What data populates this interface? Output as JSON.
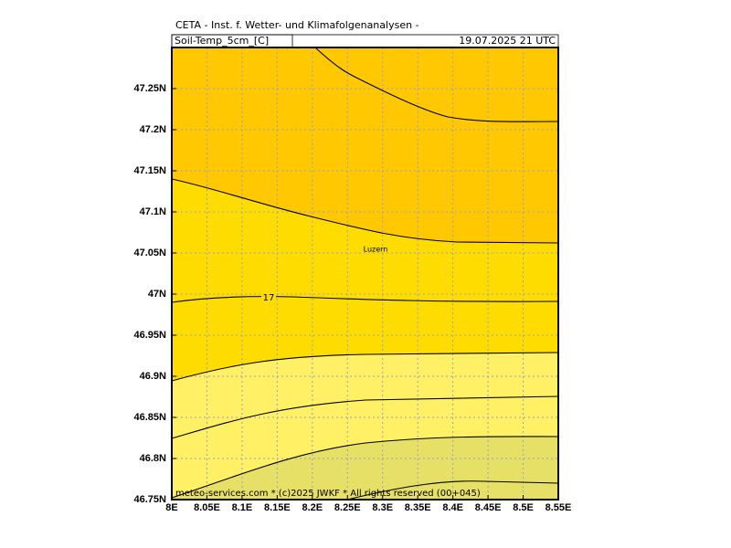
{
  "header": {
    "title": "CETA - Inst. f. Wetter- und Klimafolgenanalysen -",
    "variable": "Soil-Temp_5cm_[C]",
    "valid": "19.07.2025 21 UTC"
  },
  "map": {
    "xlim": [
      8,
      8.55
    ],
    "ylim": [
      46.75,
      47.3
    ],
    "xticks": [
      {
        "value": 8,
        "label": "8E"
      },
      {
        "value": 8.05,
        "label": "8.05E"
      },
      {
        "value": 8.1,
        "label": "8.1E"
      },
      {
        "value": 8.15,
        "label": "8.15E"
      },
      {
        "value": 8.2,
        "label": "8.2E"
      },
      {
        "value": 8.25,
        "label": "8.25E"
      },
      {
        "value": 8.3,
        "label": "8.3E"
      },
      {
        "value": 8.35,
        "label": "8.35E"
      },
      {
        "value": 8.4,
        "label": "8.4E"
      },
      {
        "value": 8.45,
        "label": "8.45E"
      },
      {
        "value": 8.5,
        "label": "8.5E"
      },
      {
        "value": 8.55,
        "label": "8.55E"
      }
    ],
    "yticks": [
      {
        "value": 46.75,
        "label": "46.75N"
      },
      {
        "value": 46.8,
        "label": "46.8N"
      },
      {
        "value": 46.85,
        "label": "46.85N"
      },
      {
        "value": 46.9,
        "label": "46.9N"
      },
      {
        "value": 46.95,
        "label": "46.95N"
      },
      {
        "value": 47,
        "label": "47N"
      },
      {
        "value": 47.05,
        "label": "47.05N"
      },
      {
        "value": 47.1,
        "label": "47.1N"
      },
      {
        "value": 47.15,
        "label": "47.15N"
      },
      {
        "value": 47.2,
        "label": "47.2N"
      },
      {
        "value": 47.25,
        "label": "47.25N"
      }
    ],
    "city": "Luzern",
    "contour_label": "17"
  },
  "footer": "meteo-services.com * (c)2025 JWKF * All rights reserved (00+045)"
}
